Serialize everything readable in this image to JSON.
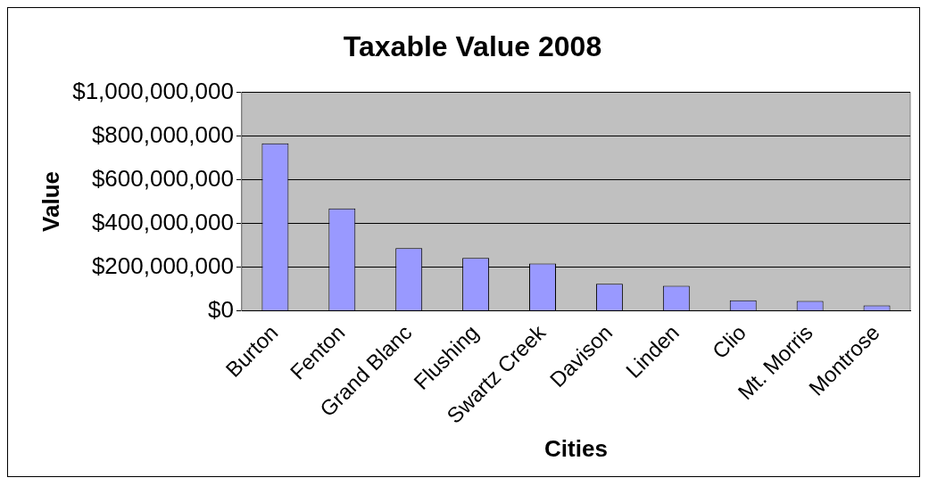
{
  "chart_data": {
    "type": "bar",
    "title": "Taxable Value 2008",
    "xlabel": "Cities",
    "ylabel": "Value",
    "categories": [
      "Burton",
      "Fenton",
      "Grand Blanc",
      "Flushing",
      "Swartz Creek",
      "Davison",
      "Linden",
      "Clio",
      "Mt. Morris",
      "Montrose"
    ],
    "values": [
      766000000,
      468000000,
      287000000,
      242000000,
      217000000,
      124000000,
      115000000,
      48000000,
      45000000,
      25000000
    ],
    "color": "#9999ff",
    "ylim": [
      0,
      1000000000
    ],
    "yticks": [
      {
        "value": 0,
        "label": "$0"
      },
      {
        "value": 200000000,
        "label": "$200,000,000"
      },
      {
        "value": 400000000,
        "label": "$400,000,000"
      },
      {
        "value": 600000000,
        "label": "$600,000,000"
      },
      {
        "value": 800000000,
        "label": "$800,000,000"
      },
      {
        "value": 1000000000,
        "label": "$1,000,000,000"
      }
    ],
    "grid": "y",
    "legend": false
  }
}
